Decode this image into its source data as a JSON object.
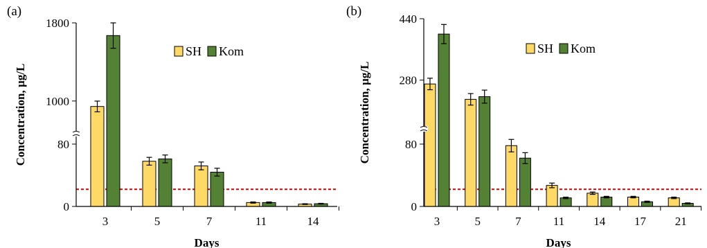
{
  "colors": {
    "SH": "#ffd966",
    "Kom": "#548235",
    "threshold": "#cc0000",
    "axis": "#000000",
    "border": "#000000"
  },
  "chart_data": [
    {
      "type": "bar",
      "panel_label": "(a)",
      "categories": [
        "3",
        "5",
        "7",
        "11",
        "14"
      ],
      "xlabel": "Days",
      "ylabel": "Concentration, µg/L",
      "y_axis_break": true,
      "y_ticks_lower": [
        "0",
        "80"
      ],
      "y_ticks_upper": [
        "1000",
        "1800"
      ],
      "ylim_lower": [
        0,
        105
      ],
      "ylim_upper": [
        800,
        1800
      ],
      "threshold": 22,
      "legend": [
        "SH",
        "Kom"
      ],
      "legend_position": "top-right",
      "series": [
        {
          "name": "SH",
          "values": [
            944,
            58,
            52,
            5,
            3
          ],
          "errors": [
            55,
            5,
            5,
            0.8,
            0.5
          ]
        },
        {
          "name": "Kom",
          "values": [
            1670,
            61,
            44,
            5,
            3.5
          ],
          "errors": [
            130,
            5,
            5,
            0.8,
            0.5
          ]
        }
      ]
    },
    {
      "type": "bar",
      "panel_label": "(b)",
      "categories": [
        "3",
        "5",
        "7",
        "11",
        "14",
        "17",
        "21"
      ],
      "xlabel": "Days",
      "ylabel": "Concentration, µg/L",
      "y_axis_break": true,
      "y_ticks_lower": [
        "0",
        "80"
      ],
      "y_ticks_upper": [
        "280",
        "440"
      ],
      "ylim_lower": [
        0,
        105
      ],
      "ylim_upper": [
        200,
        440
      ],
      "threshold": 22,
      "legend": [
        "SH",
        "Kom"
      ],
      "legend_position": "top-right",
      "series": [
        {
          "name": "SH",
          "values": [
            270,
            230,
            78,
            27,
            17,
            12,
            11
          ],
          "errors": [
            15,
            15,
            8,
            3,
            1.5,
            1,
            1
          ]
        },
        {
          "name": "Kom",
          "values": [
            400,
            237,
            62,
            11,
            12,
            6,
            4
          ],
          "errors": [
            25,
            17,
            7,
            1,
            1,
            0.8,
            0.6
          ]
        }
      ]
    }
  ]
}
